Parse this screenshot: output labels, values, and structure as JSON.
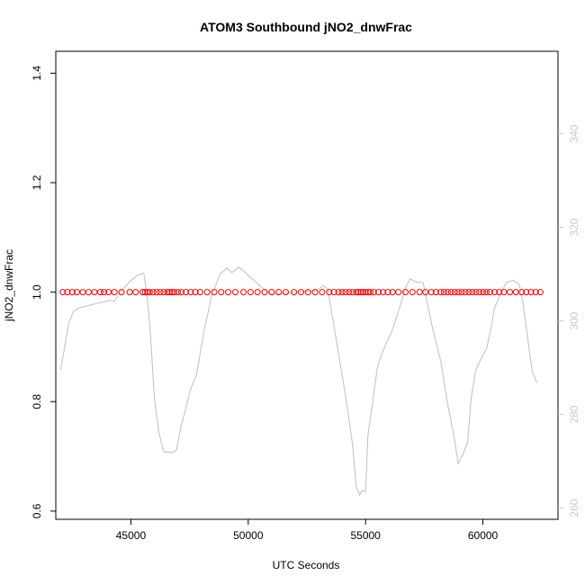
{
  "chart_data": {
    "type": "scatter",
    "title": "ATOM3 Southbound jNO2_dnwFrac",
    "xlabel": "UTC Seconds",
    "ylabel": "jNO2_dnwFrac",
    "xlim": [
      41800,
      63200
    ],
    "ylim": [
      0.585,
      1.44
    ],
    "xticks": [
      45000,
      50000,
      55000,
      60000
    ],
    "xtick_labels": [
      "45000",
      "50000",
      "55000",
      "60000"
    ],
    "yticks": [
      0.6,
      0.8,
      1.0,
      1.2,
      1.4
    ],
    "ytick_labels": [
      "0.6",
      "0.8",
      "1.0",
      "1.2",
      "1.4"
    ],
    "y2lim": [
      257.6,
      357.6
    ],
    "y2ticks": [
      260,
      280,
      300,
      320,
      340
    ],
    "y2tick_labels": [
      "260",
      "280",
      "300",
      "320",
      "340"
    ],
    "grid": false,
    "colors": {
      "points": "#ff0000",
      "line": "#bebebe",
      "right_axis": "#c8c8c8"
    },
    "series": [
      {
        "kind": "points",
        "axis": "left",
        "x": [
          42100,
          42300,
          42500,
          42700,
          42950,
          43200,
          43450,
          43700,
          43850,
          44050,
          44300,
          44600,
          44950,
          45200,
          45500,
          45600,
          45700,
          45800,
          45950,
          46100,
          46250,
          46400,
          46550,
          46650,
          46750,
          46850,
          47000,
          47150,
          47350,
          47550,
          47750,
          47950,
          48250,
          48550,
          48850,
          49150,
          49450,
          49800,
          50100,
          50400,
          50700,
          51000,
          51300,
          51600,
          51950,
          52250,
          52550,
          52850,
          53150,
          53450,
          53650,
          53850,
          54000,
          54150,
          54300,
          54450,
          54600,
          54700,
          54800,
          54900,
          55000,
          55100,
          55200,
          55350,
          55550,
          55750,
          55950,
          56150,
          56400,
          56700,
          57000,
          57300,
          57550,
          57800,
          58000,
          58200,
          58350,
          58500,
          58650,
          58800,
          58950,
          59100,
          59250,
          59400,
          59550,
          59700,
          59850,
          60000,
          60150,
          60300,
          60500,
          60700,
          60900,
          61150,
          61400,
          61650,
          61850,
          62050,
          62250,
          62450
        ],
        "y": [
          1.0,
          1.0,
          1.0,
          1.0,
          1.0,
          1.0,
          1.0,
          1.0,
          1.0,
          1.0,
          1.0,
          1.0,
          1.0,
          1.0,
          1.0,
          1.0,
          1.0,
          1.0,
          1.0,
          1.0,
          1.0,
          1.0,
          1.0,
          1.0,
          1.0,
          1.0,
          1.0,
          1.0,
          1.0,
          1.0,
          1.0,
          1.0,
          1.0,
          1.0,
          1.0,
          1.0,
          1.0,
          1.0,
          1.0,
          1.0,
          1.0,
          1.0,
          1.0,
          1.0,
          1.0,
          1.0,
          1.0,
          1.0,
          1.0,
          1.0,
          1.0,
          1.0,
          1.0,
          1.0,
          1.0,
          1.0,
          1.0,
          1.0,
          1.0,
          1.0,
          1.0,
          1.0,
          1.0,
          1.0,
          1.0,
          1.0,
          1.0,
          1.0,
          1.0,
          1.0,
          1.0,
          1.0,
          1.0,
          1.0,
          1.0,
          1.0,
          1.0,
          1.0,
          1.0,
          1.0,
          1.0,
          1.0,
          1.0,
          1.0,
          1.0,
          1.0,
          1.0,
          1.0,
          1.0,
          1.0,
          1.0,
          1.0,
          1.0,
          1.0,
          1.0,
          1.0,
          1.0,
          1.0,
          1.0,
          1.0
        ]
      },
      {
        "kind": "line",
        "axis": "right",
        "x": [
          42000,
          42150,
          42350,
          42550,
          42800,
          43200,
          43600,
          43850,
          44100,
          44300,
          44500,
          44750,
          45000,
          45200,
          45400,
          45550,
          45700,
          45850,
          46000,
          46200,
          46400,
          46600,
          46800,
          46950,
          47100,
          47300,
          47550,
          47800,
          48100,
          48450,
          48800,
          49100,
          49300,
          49600,
          49800,
          50100,
          50400,
          50750,
          51050,
          51350,
          51700,
          52000,
          52300,
          52600,
          52900,
          53200,
          53400,
          53500,
          53650,
          53850,
          54050,
          54250,
          54450,
          54600,
          54750,
          54850,
          55000,
          55100,
          55300,
          55500,
          55700,
          55900,
          56100,
          56400,
          56700,
          56900,
          57150,
          57450,
          57850,
          58200,
          58500,
          58750,
          58950,
          59150,
          59350,
          59500,
          59700,
          59950,
          60150,
          60350,
          60500,
          60700,
          61000,
          61300,
          61550,
          61700,
          61900,
          62100,
          62300
        ],
        "y": [
          289.5,
          293.5,
          299.5,
          302,
          302.8,
          303.3,
          303.8,
          304,
          304.4,
          304.2,
          305.8,
          307.3,
          308.6,
          309.4,
          310,
          310.2,
          305,
          296,
          283.5,
          276,
          272,
          272,
          271.9,
          272.5,
          276.7,
          280.5,
          285.5,
          288.5,
          297.5,
          305.5,
          310,
          311.3,
          310.3,
          311.5,
          310.7,
          309.3,
          308,
          306.4,
          305.7,
          305.8,
          306,
          306.1,
          306.2,
          306.4,
          306.5,
          307.5,
          306.8,
          303.5,
          299,
          293,
          287,
          280.5,
          273.5,
          264.5,
          262.8,
          263.8,
          263.5,
          275.5,
          282.5,
          290,
          293,
          295.5,
          297.5,
          302,
          307,
          309,
          308.3,
          308.2,
          298.5,
          291.5,
          282.2,
          275.8,
          269.5,
          271.5,
          274,
          283.5,
          289.5,
          292.2,
          294,
          298.5,
          302.8,
          305.2,
          308.2,
          308.7,
          307.7,
          304,
          296.7,
          289.2,
          286.8
        ]
      }
    ]
  }
}
